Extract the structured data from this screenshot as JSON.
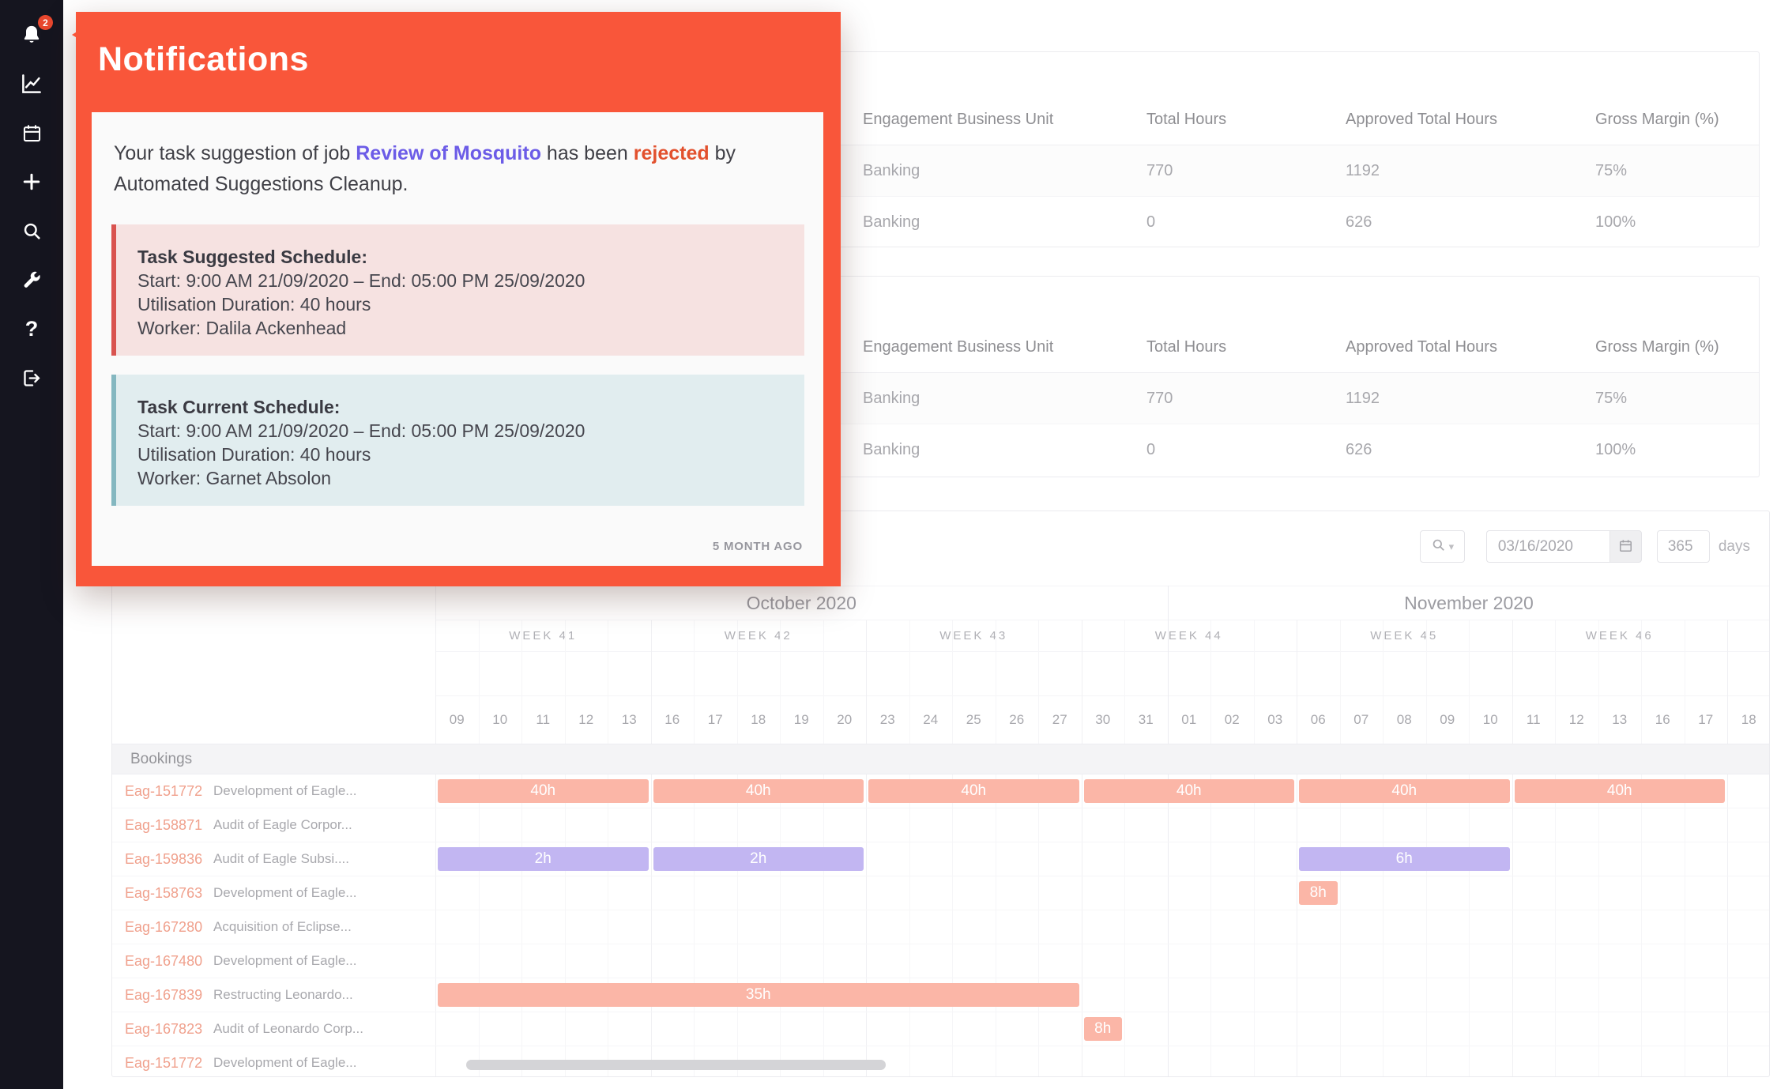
{
  "theme": {
    "accent": "#f9563a",
    "link": "#6c5ce7",
    "rejected": "#e2502d",
    "suggested_bg": "#f6e2e1",
    "suggested_border": "#d9534f",
    "current_bg": "#e1edef",
    "current_border": "#84b7c0",
    "bar_coral": "#f87c61",
    "bar_purple": "#927ce9",
    "sidebar_bg": "#15151f",
    "badge_bg": "#e8472e",
    "row_id": "#e45430"
  },
  "sidebar": {
    "badge_count": "2",
    "icons": [
      "bell-icon",
      "chart-icon",
      "calendar-icon",
      "plus-icon",
      "search-icon",
      "wrench-icon",
      "question-icon",
      "logout-icon"
    ]
  },
  "notification": {
    "title": "Notifications",
    "message_prefix": "Your task suggestion of job ",
    "message_job": "Review of Mosquito",
    "message_mid": " has been ",
    "message_status": "rejected",
    "message_suffix": " by Automated Suggestions Cleanup.",
    "suggested_heading": "Task Suggested Schedule:",
    "suggested_schedule": "Start: 9:00 AM 21/09/2020 – End: 05:00 PM 25/09/2020",
    "suggested_duration": "Utilisation Duration: 40 hours",
    "suggested_worker": "Worker: Dalila Ackenhead",
    "current_heading": "Task Current Schedule:",
    "current_schedule": "Start: 9:00 AM 21/09/2020 – End: 05:00 PM 25/09/2020",
    "current_duration": "Utilisation Duration: 40 hours",
    "current_worker": "Worker: Garnet Absolon",
    "timestamp": "5 MONTH AGO"
  },
  "tables": [
    {
      "headers": [
        "Engagement Business Unit",
        "Total Hours",
        "Approved Total Hours",
        "Gross Margin (%)"
      ],
      "rows": [
        [
          "Banking",
          "770",
          "1192",
          "75%"
        ],
        [
          "Banking",
          "0",
          "626",
          "100%"
        ]
      ]
    },
    {
      "headers": [
        "Engagement Business Unit",
        "Total Hours",
        "Approved Total Hours",
        "Gross Margin (%)"
      ],
      "rows": [
        [
          "Banking",
          "770",
          "1192",
          "75%"
        ],
        [
          "Banking",
          "0",
          "626",
          "100%"
        ]
      ]
    }
  ],
  "gantt": {
    "toolbar": {
      "date_value": "03/16/2020",
      "days_value": "365",
      "days_label": "days"
    },
    "months": [
      {
        "label": "October 2020",
        "days": 17
      },
      {
        "label": "November 2020",
        "days": 14
      }
    ],
    "weeks": [
      {
        "label": "WEEK 41",
        "days": 5
      },
      {
        "label": "WEEK 42",
        "days": 5
      },
      {
        "label": "WEEK 43",
        "days": 5
      },
      {
        "label": "WEEK 44",
        "days": 5
      },
      {
        "label": "WEEK 45",
        "days": 5
      },
      {
        "label": "WEEK 46",
        "days": 5
      },
      {
        "label": "",
        "days": 1
      }
    ],
    "days": [
      "09",
      "10",
      "11",
      "12",
      "13",
      "16",
      "17",
      "18",
      "19",
      "20",
      "23",
      "24",
      "25",
      "26",
      "27",
      "30",
      "31",
      "01",
      "02",
      "03",
      "06",
      "07",
      "08",
      "09",
      "10",
      "11",
      "12",
      "13",
      "16",
      "17",
      "18"
    ],
    "section_label": "Bookings",
    "rows": [
      {
        "id": "Eag-151772",
        "name": "Development of Eagle...",
        "bars": [
          {
            "start": 0,
            "span": 5,
            "label": "40h",
            "type": "coral"
          },
          {
            "start": 5,
            "span": 5,
            "label": "40h",
            "type": "coral"
          },
          {
            "start": 10,
            "span": 5,
            "label": "40h",
            "type": "coral"
          },
          {
            "start": 15,
            "span": 5,
            "label": "40h",
            "type": "coral"
          },
          {
            "start": 20,
            "span": 5,
            "label": "40h",
            "type": "coral"
          },
          {
            "start": 25,
            "span": 5,
            "label": "40h",
            "type": "coral"
          }
        ]
      },
      {
        "id": "Eag-158871",
        "name": "Audit of Eagle Corpor...",
        "bars": []
      },
      {
        "id": "Eag-159836",
        "name": "Audit of Eagle Subsi....",
        "bars": [
          {
            "start": 0,
            "span": 5,
            "label": "2h",
            "type": "purple"
          },
          {
            "start": 5,
            "span": 5,
            "label": "2h",
            "type": "purple"
          },
          {
            "start": 20,
            "span": 5,
            "label": "6h",
            "type": "purple"
          }
        ]
      },
      {
        "id": "Eag-158763",
        "name": "Development of Eagle...",
        "bars": [
          {
            "start": 20,
            "span": 1,
            "label": "8h",
            "type": "coral"
          }
        ]
      },
      {
        "id": "Eag-167280",
        "name": "Acquisition of Eclipse...",
        "bars": []
      },
      {
        "id": "Eag-167480",
        "name": "Development of Eagle...",
        "bars": []
      },
      {
        "id": "Eag-167839",
        "name": "Restructing Leonardo...",
        "bars": [
          {
            "start": 0,
            "span": 15,
            "label": "35h",
            "type": "coral"
          }
        ]
      },
      {
        "id": "Eag-167823",
        "name": "Audit of Leonardo Corp...",
        "bars": [
          {
            "start": 15,
            "span": 1,
            "label": "8h",
            "type": "coral"
          }
        ]
      },
      {
        "id": "Eag-151772",
        "name": "Development of Eagle...",
        "bars": []
      }
    ]
  }
}
